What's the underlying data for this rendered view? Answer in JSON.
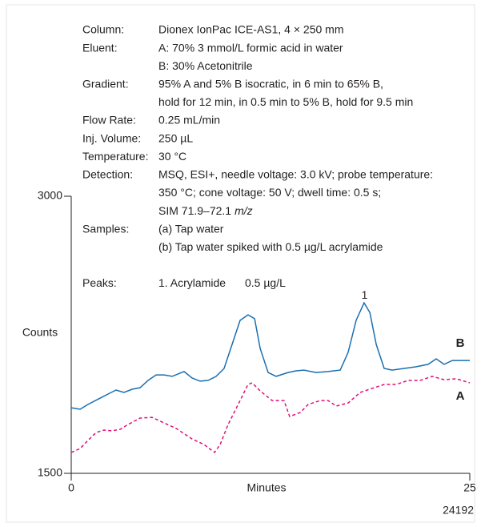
{
  "chart_data": {
    "type": "line",
    "conditions": [
      {
        "label": "Column:",
        "lines": [
          "Dionex IonPac ICE-AS1, 4 × 250 mm"
        ]
      },
      {
        "label": "Eluent:",
        "lines": [
          "A: 70% 3 mmol/L formic acid in water",
          "B: 30% Acetonitrile"
        ]
      },
      {
        "label": "Gradient:",
        "lines": [
          "95% A and 5% B isocratic, in 6 min to 65% B,",
          "hold for 12 min, in 0.5 min to 5% B, hold for 9.5 min"
        ]
      },
      {
        "label": "Flow Rate:",
        "lines": [
          "0.25 mL/min"
        ]
      },
      {
        "label": "Inj. Volume:",
        "lines": [
          "250 µL"
        ]
      },
      {
        "label": "Temperature:",
        "lines": [
          "30 °C"
        ]
      },
      {
        "label": "Detection:",
        "lines": [
          "MSQ, ESI+, needle voltage: 3.0 kV; probe temperature:",
          "350 °C; cone voltage: 50 V; dwell time: 0.5 s;",
          [
            "SIM 71.9–72.1",
            "m/z"
          ]
        ]
      },
      {
        "label": "Samples:",
        "lines": [
          "(a) Tap water",
          "(b) Tap water spiked with 0.5 µg/L acrylamide"
        ]
      }
    ],
    "peaks": {
      "label": "Peaks:",
      "name": "1. Acrylamide",
      "amount": "0.5 µg/L"
    },
    "y_label": "Counts",
    "x_label": "Minutes",
    "figure_number": "24192",
    "peak_label": {
      "text": "1",
      "x": 18.4,
      "y": 2410
    },
    "xlim": [
      0,
      25
    ],
    "xticks": [
      0,
      25
    ],
    "ylim": [
      1500,
      3000
    ],
    "yticks": [
      1500,
      3000
    ],
    "series": [
      {
        "name": "B",
        "color": "#1a6fb0",
        "dashed": false,
        "x": [
          0,
          0.55,
          1.05,
          1.81,
          2.31,
          2.81,
          3.31,
          3.82,
          4.32,
          4.82,
          5.32,
          5.82,
          6.33,
          7.08,
          7.58,
          8.08,
          8.58,
          9.09,
          9.59,
          10.09,
          10.59,
          11.09,
          11.5,
          11.85,
          12.35,
          12.85,
          13.6,
          14.1,
          14.6,
          15.36,
          16.11,
          16.87,
          17.37,
          17.87,
          18.37,
          18.73,
          19.13,
          19.63,
          20.13,
          20.88,
          21.64,
          22.39,
          22.89,
          23.39,
          23.9,
          24.4,
          25
        ],
        "values": [
          1855,
          1847,
          1873,
          1907,
          1929,
          1951,
          1938,
          1955,
          1964,
          2003,
          2033,
          2033,
          2025,
          2051,
          2016,
          1999,
          2003,
          2025,
          2068,
          2198,
          2328,
          2358,
          2337,
          2176,
          2046,
          2025,
          2046,
          2055,
          2059,
          2046,
          2051,
          2059,
          2155,
          2328,
          2423,
          2371,
          2198,
          2068,
          2059,
          2068,
          2077,
          2090,
          2120,
          2090,
          2111,
          2111,
          2111
        ]
      },
      {
        "name": "A",
        "color": "#e0107a",
        "dashed": true,
        "x": [
          0,
          0.55,
          1.05,
          1.56,
          2.06,
          2.56,
          3.06,
          3.56,
          4.32,
          5.07,
          5.82,
          6.58,
          7.58,
          8.33,
          8.99,
          9.34,
          9.84,
          10.59,
          11.09,
          11.35,
          11.85,
          12.6,
          13.35,
          13.7,
          14.36,
          14.86,
          15.61,
          16.11,
          16.62,
          17.37,
          18.12,
          18.88,
          19.63,
          20.38,
          21.13,
          21.89,
          22.64,
          23.39,
          24.15,
          25
        ],
        "values": [
          1613,
          1634,
          1678,
          1721,
          1734,
          1730,
          1738,
          1764,
          1799,
          1803,
          1773,
          1743,
          1686,
          1656,
          1613,
          1656,
          1764,
          1894,
          1981,
          1990,
          1946,
          1894,
          1894,
          1808,
          1829,
          1873,
          1894,
          1894,
          1864,
          1881,
          1938,
          1960,
          1981,
          1981,
          2003,
          2003,
          2025,
          2007,
          2012,
          1990
        ]
      }
    ]
  }
}
